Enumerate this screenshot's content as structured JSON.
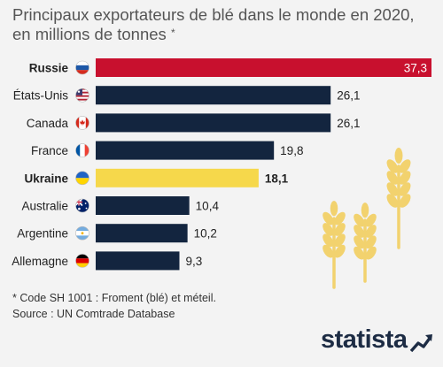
{
  "title": "Principaux exportateurs de blé dans le monde en 2020, en millions de tonnes",
  "title_star": "*",
  "notes": {
    "line1": "* Code SH 1001 : Froment (blé) et méteil.",
    "line2": "Source : UN Comtrade Database"
  },
  "logo_text": "statista",
  "colors": {
    "highlight_russia": "#c8102e",
    "highlight_ukraine": "#f6d84b",
    "default": "#13253f",
    "wheat": "#f2d26e"
  },
  "chart_data": {
    "type": "bar",
    "orientation": "horizontal",
    "categories": [
      "Russie",
      "États-Unis",
      "Canada",
      "France",
      "Ukraine",
      "Australie",
      "Argentine",
      "Allemagne"
    ],
    "values": [
      37.3,
      26.1,
      26.1,
      19.8,
      18.1,
      10.4,
      10.2,
      9.3
    ],
    "value_labels": [
      "37,3",
      "26,1",
      "26,1",
      "19,8",
      "18,1",
      "10,4",
      "10,2",
      "9,3"
    ],
    "bold_categories": [
      "Russie",
      "Ukraine"
    ],
    "flags": [
      "russia-flag-icon",
      "usa-flag-icon",
      "canada-flag-icon",
      "france-flag-icon",
      "ukraine-flag-icon",
      "australia-flag-icon",
      "argentina-flag-icon",
      "germany-flag-icon"
    ],
    "xlim": [
      0,
      37.3
    ],
    "grid": false
  }
}
